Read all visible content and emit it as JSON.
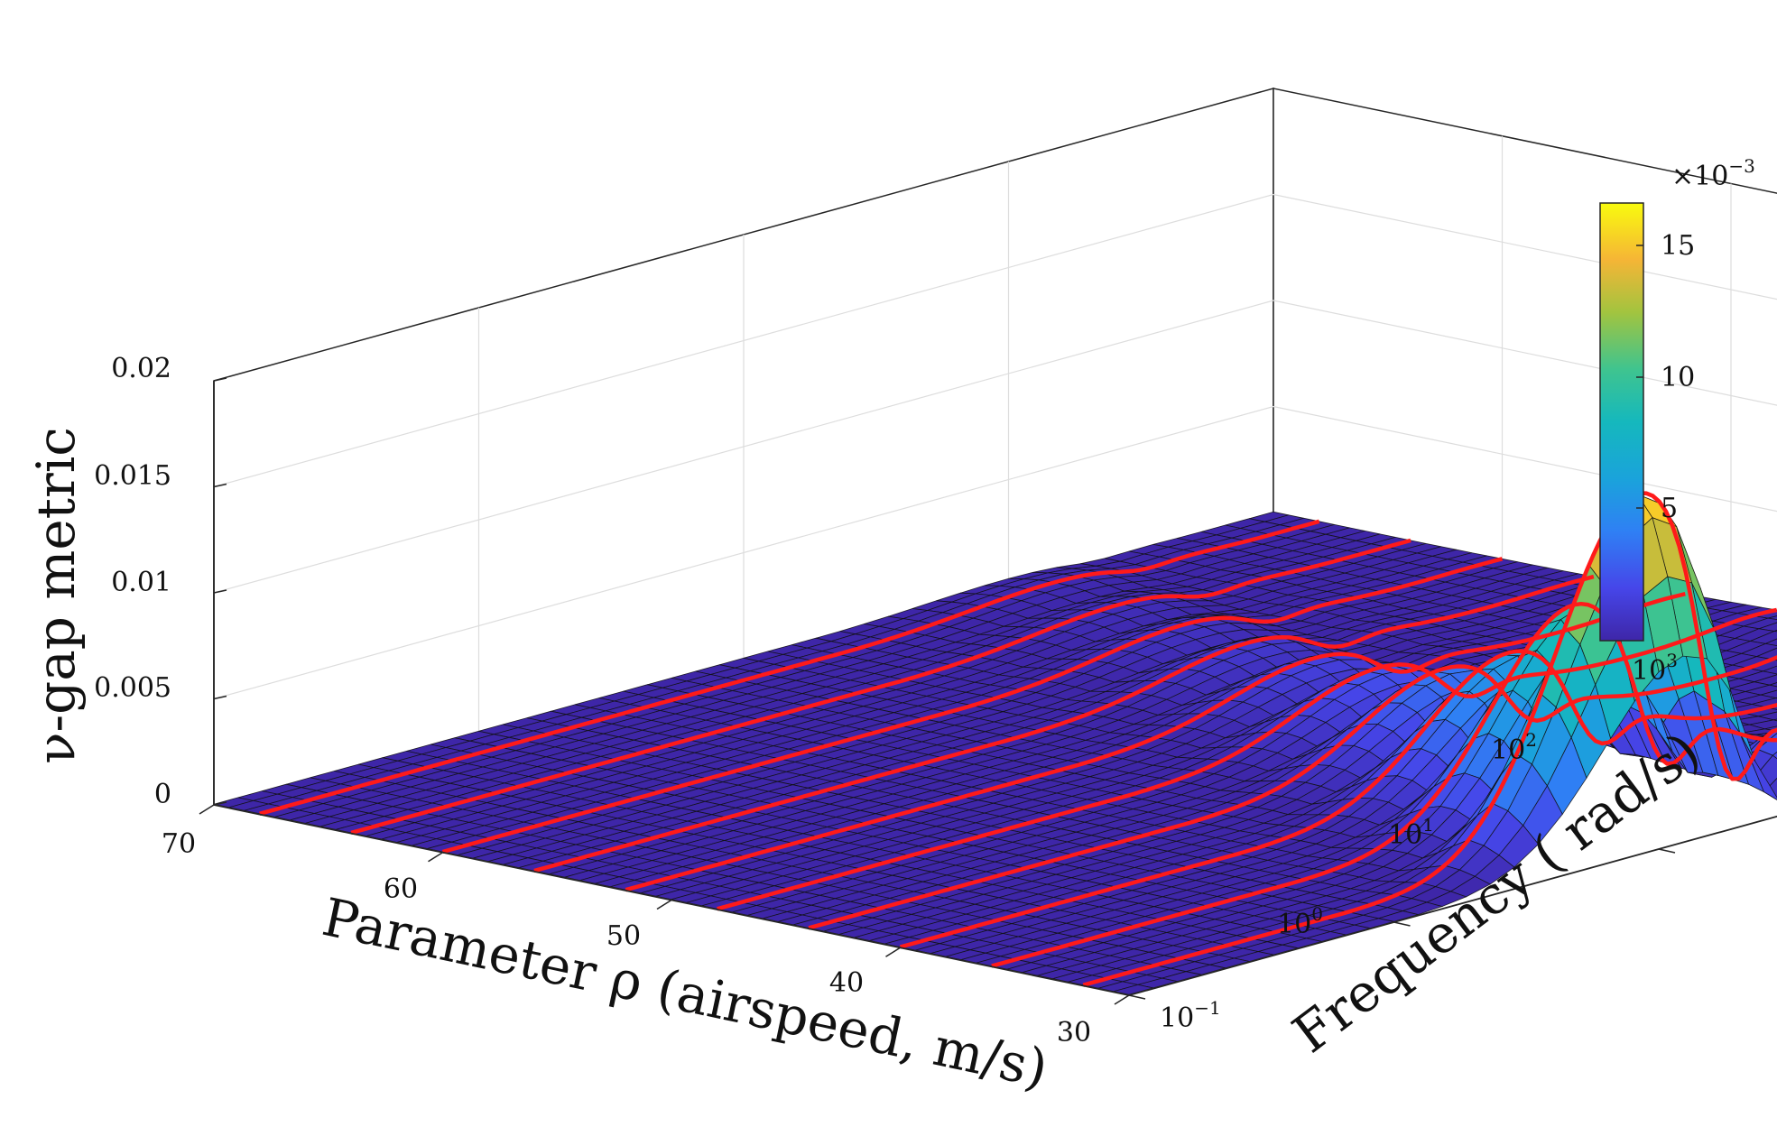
{
  "chart_data": {
    "type": "surface",
    "title": "",
    "zlabel": "ν-gap metric",
    "xlabel": "Parameter ρ (airspeed, m/s)",
    "ylabel": "Frequency ( rad/s)",
    "z_ticks": [
      "0",
      "0.005",
      "0.01",
      "0.015",
      "0.02"
    ],
    "z_tick_values": [
      0,
      0.005,
      0.01,
      0.015,
      0.02
    ],
    "zlim": [
      0,
      0.02
    ],
    "x_ticks": [
      "70",
      "60",
      "50",
      "40",
      "30"
    ],
    "x_tick_values": [
      70,
      60,
      50,
      40,
      30
    ],
    "xlim": [
      70,
      30
    ],
    "y_ticks": [
      {
        "base": "10",
        "exp": "−1",
        "value": 0.1
      },
      {
        "base": "10",
        "exp": "0",
        "value": 1
      },
      {
        "base": "10",
        "exp": "1",
        "value": 10
      },
      {
        "base": "10",
        "exp": "2",
        "value": 100
      },
      {
        "base": "10",
        "exp": "3",
        "value": 1000
      }
    ],
    "ylim_log10": [
      -1,
      3
    ],
    "red_slice_airspeeds": [
      68,
      64,
      60,
      56,
      52,
      48,
      44,
      40,
      36,
      32
    ],
    "surface_peaks": [
      {
        "airspeed": 68,
        "peak_freq_log10": 2.0,
        "peak_value": 0.0006
      },
      {
        "airspeed": 64,
        "peak_freq_log10": 1.9,
        "peak_value": 0.0008
      },
      {
        "airspeed": 60,
        "peak_freq_log10": 1.8,
        "peak_value": 0.0011
      },
      {
        "airspeed": 56,
        "peak_freq_log10": 1.7,
        "peak_value": 0.0015
      },
      {
        "airspeed": 52,
        "peak_freq_log10": 1.6,
        "peak_value": 0.002
      },
      {
        "airspeed": 48,
        "peak_freq_log10": 1.5,
        "peak_value": 0.0028
      },
      {
        "airspeed": 44,
        "peak_freq_log10": 1.4,
        "peak_value": 0.004
      },
      {
        "airspeed": 40,
        "peak_freq_log10": 1.3,
        "peak_value": 0.006
      },
      {
        "airspeed": 36,
        "peak_freq_log10": 1.2,
        "peak_value": 0.0095
      },
      {
        "airspeed": 32,
        "peak_freq_log10": 1.1,
        "peak_value": 0.016
      }
    ],
    "colorbar": {
      "scale_label": "×10",
      "scale_exp": "−3",
      "ticks": [
        "5",
        "10",
        "15"
      ],
      "tick_values": [
        5,
        10,
        15
      ],
      "range": [
        0.3,
        16.5
      ],
      "colormap": "parula"
    },
    "colors": {
      "low": "#3e26a8",
      "high": "#f9fb0e",
      "slice_line": "#ff1a1a",
      "mesh_line": "#111111",
      "grid": "#dddddd",
      "axis": "#262626"
    }
  }
}
